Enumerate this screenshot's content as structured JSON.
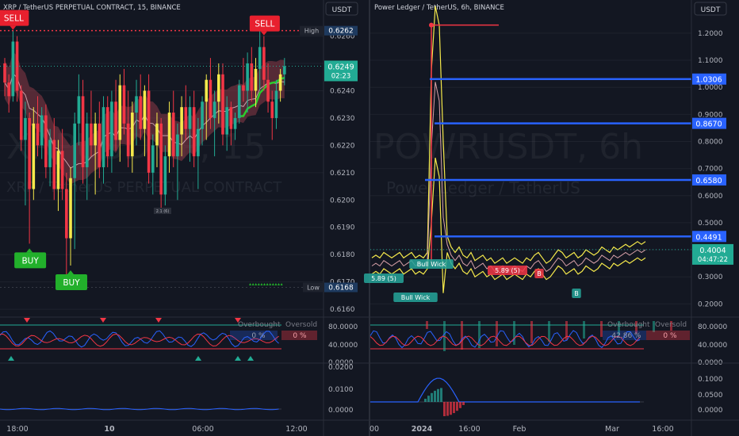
{
  "chart_data": [
    {
      "type": "candlestick",
      "title": "XRP / TetherUS PERPETUAL CONTRACT, 15, BINANCE",
      "watermark": "XRPUSDT.P, 15",
      "watermark_sub": "XRP / TetherUS PERPETUAL CONTRACT",
      "currency": "USDT",
      "price_ticks": [
        "0.6260",
        "0.6250",
        "0.6240",
        "0.6230",
        "0.6220",
        "0.6210",
        "0.6200",
        "0.6190",
        "0.6180",
        "0.6170",
        "0.6160"
      ],
      "time_ticks": [
        "18:00",
        "10",
        "06:00",
        "12:00"
      ],
      "high_label": "High",
      "high_value": "0.6262",
      "low_label": "Low",
      "low_value": "0.6168",
      "last_price": "0.6249",
      "countdown": "02:23",
      "signals": [
        {
          "label": "SELL",
          "kind": "sell",
          "bar": 2
        },
        {
          "label": "SELL",
          "kind": "sell",
          "bar": 63
        },
        {
          "label": "BUY",
          "kind": "buy",
          "bar": 6
        },
        {
          "label": "BUY",
          "kind": "buy",
          "bar": 16
        }
      ],
      "small_label": "2.1 (6)",
      "oscillator": {
        "overbought_label": "Overbought",
        "oversold_label": "Oversold",
        "overbought_value": "0 %",
        "oversold_value": "0 %",
        "ticks": [
          "80.0000",
          "40.0000",
          "0.0000"
        ]
      },
      "macd": {
        "ticks": [
          "0.0200",
          "0.0100",
          "0.0000"
        ]
      },
      "colors": {
        "up": "#22ab94",
        "down": "#f23645",
        "signal_up": "#f5e94b",
        "cloud": "#b05a66",
        "ema": "#2dcc2d"
      },
      "candles": [
        [
          0.625,
          0.6252,
          0.6238,
          0.6243
        ],
        [
          0.6243,
          0.6246,
          0.6232,
          0.6238
        ],
        [
          0.6238,
          0.6262,
          0.6236,
          0.6258
        ],
        [
          0.6258,
          0.626,
          0.6236,
          0.624
        ],
        [
          0.624,
          0.6242,
          0.6218,
          0.6222
        ],
        [
          0.6222,
          0.6236,
          0.6198,
          0.623
        ],
        [
          0.623,
          0.6232,
          0.6184,
          0.6204
        ],
        [
          0.6204,
          0.6234,
          0.62,
          0.6228
        ],
        [
          0.6228,
          0.6238,
          0.6216,
          0.622
        ],
        [
          0.622,
          0.6234,
          0.6215,
          0.6231
        ],
        [
          0.6231,
          0.6235,
          0.6208,
          0.6212
        ],
        [
          0.6212,
          0.6226,
          0.6205,
          0.6222
        ],
        [
          0.6222,
          0.623,
          0.62,
          0.6204
        ],
        [
          0.6204,
          0.6222,
          0.6196,
          0.6218
        ],
        [
          0.6218,
          0.6226,
          0.62,
          0.6204
        ],
        [
          0.6204,
          0.621,
          0.617,
          0.6186
        ],
        [
          0.6186,
          0.6212,
          0.6176,
          0.6208
        ],
        [
          0.6208,
          0.6232,
          0.6182,
          0.6228
        ],
        [
          0.6228,
          0.6246,
          0.622,
          0.6238
        ],
        [
          0.6238,
          0.6244,
          0.6206,
          0.6212
        ],
        [
          0.6212,
          0.6232,
          0.62,
          0.6228
        ],
        [
          0.6228,
          0.624,
          0.6216,
          0.622
        ],
        [
          0.622,
          0.6232,
          0.6202,
          0.6228
        ],
        [
          0.6228,
          0.6236,
          0.6208,
          0.6212
        ],
        [
          0.6212,
          0.6238,
          0.6206,
          0.6234
        ],
        [
          0.6234,
          0.6238,
          0.6212,
          0.6216
        ],
        [
          0.6216,
          0.624,
          0.621,
          0.6236
        ],
        [
          0.6236,
          0.6244,
          0.6218,
          0.6222
        ],
        [
          0.6222,
          0.6246,
          0.6214,
          0.6242
        ],
        [
          0.6242,
          0.6248,
          0.6224,
          0.6228
        ],
        [
          0.6228,
          0.624,
          0.6212,
          0.6216
        ],
        [
          0.6216,
          0.6236,
          0.621,
          0.6232
        ],
        [
          0.6232,
          0.6244,
          0.622,
          0.6238
        ],
        [
          0.6238,
          0.6246,
          0.6222,
          0.6226
        ],
        [
          0.6226,
          0.6242,
          0.6216,
          0.624
        ],
        [
          0.624,
          0.6246,
          0.6206,
          0.621
        ],
        [
          0.621,
          0.6224,
          0.6202,
          0.622
        ],
        [
          0.622,
          0.6232,
          0.6212,
          0.6228
        ],
        [
          0.6228,
          0.623,
          0.6196,
          0.6202
        ],
        [
          0.6202,
          0.622,
          0.6198,
          0.6216
        ],
        [
          0.6216,
          0.6236,
          0.621,
          0.6232
        ],
        [
          0.6232,
          0.624,
          0.6212,
          0.6216
        ],
        [
          0.6216,
          0.6228,
          0.62,
          0.6224
        ],
        [
          0.6224,
          0.6238,
          0.6216,
          0.6234
        ],
        [
          0.6234,
          0.6242,
          0.6222,
          0.6226
        ],
        [
          0.6226,
          0.6238,
          0.6214,
          0.6234
        ],
        [
          0.6234,
          0.624,
          0.6212,
          0.6216
        ],
        [
          0.6216,
          0.623,
          0.6204,
          0.6226
        ],
        [
          0.6226,
          0.6238,
          0.622,
          0.6236
        ],
        [
          0.6236,
          0.6246,
          0.6222,
          0.6244
        ],
        [
          0.6244,
          0.6252,
          0.6226,
          0.623
        ],
        [
          0.623,
          0.624,
          0.6216,
          0.6236
        ],
        [
          0.6236,
          0.625,
          0.6228,
          0.6246
        ],
        [
          0.6246,
          0.625,
          0.622,
          0.6224
        ],
        [
          0.6224,
          0.6238,
          0.6218,
          0.6234
        ],
        [
          0.6234,
          0.6236,
          0.622,
          0.6226
        ],
        [
          0.6226,
          0.6232,
          0.6222,
          0.623
        ],
        [
          0.623,
          0.6244,
          0.6228,
          0.6242
        ],
        [
          0.6242,
          0.6252,
          0.6236,
          0.624
        ],
        [
          0.624,
          0.6254,
          0.6232,
          0.625
        ],
        [
          0.625,
          0.6256,
          0.6236,
          0.624
        ],
        [
          0.624,
          0.6252,
          0.6234,
          0.6248
        ],
        [
          0.6248,
          0.6262,
          0.624,
          0.6256
        ],
        [
          0.6256,
          0.626,
          0.624,
          0.6244
        ],
        [
          0.6244,
          0.625,
          0.6232,
          0.6236
        ],
        [
          0.6236,
          0.624,
          0.6222,
          0.623
        ],
        [
          0.623,
          0.6244,
          0.6226,
          0.624
        ],
        [
          0.624,
          0.6248,
          0.6236,
          0.6246
        ],
        [
          0.6246,
          0.6252,
          0.6242,
          0.6249
        ]
      ]
    },
    {
      "type": "line",
      "title": "Power Ledger / TetherUS, 6h, BINANCE",
      "watermark": "POWRUSDT, 6h",
      "watermark_sub": "Power Ledger / TetherUS",
      "currency": "USDT",
      "price_ticks": [
        "1.2000",
        "1.1000",
        "1.0000",
        "0.9000",
        "0.8000",
        "0.7000",
        "0.6000",
        "0.5000",
        "0.4000",
        "0.3000",
        "0.2000"
      ],
      "time_ticks": [
        "00",
        "2024",
        "16:00",
        "Feb",
        "Mar",
        "16:00"
      ],
      "levels": [
        {
          "value": "1.0306"
        },
        {
          "value": "0.8670"
        },
        {
          "value": "0.6580"
        },
        {
          "value": "0.4491"
        }
      ],
      "last_price": "0.4004",
      "countdown": "04:47:22",
      "tags": [
        "5.89 (5)",
        "Bull Wick",
        "Bull Wick",
        "5.89 (5)",
        "B",
        "B"
      ],
      "oscillator": {
        "overbought_label": "Overbought",
        "oversold_label": "Oversold",
        "overbought_value": "42.86 %",
        "oversold_value": "0 %",
        "ticks": [
          "80.0000",
          "40.0000",
          "0.0000"
        ]
      },
      "macd": {
        "ticks": [
          "0.1000",
          "0.0500",
          "0.0000"
        ]
      },
      "x": [
        0,
        5,
        10,
        15,
        20,
        25,
        30,
        35,
        40,
        45,
        50,
        55,
        60,
        65,
        70,
        75,
        80,
        85,
        90,
        95,
        100,
        105,
        110,
        115,
        120,
        125,
        130,
        135,
        140,
        145,
        150,
        155,
        160,
        165,
        170,
        175,
        180,
        185,
        190,
        195,
        200,
        205,
        210,
        215,
        220,
        225,
        230,
        235,
        240,
        245,
        250,
        255,
        260,
        265,
        270,
        275,
        280,
        285,
        290,
        295,
        300,
        305,
        310,
        315,
        320,
        325,
        330,
        335,
        340,
        345
      ],
      "close": [
        0.34,
        0.35,
        0.34,
        0.36,
        0.35,
        0.34,
        0.35,
        0.36,
        0.34,
        0.35,
        0.36,
        0.34,
        0.35,
        0.34,
        0.36,
        0.78,
        1.02,
        0.95,
        0.52,
        0.42,
        0.38,
        0.36,
        0.38,
        0.35,
        0.34,
        0.36,
        0.33,
        0.34,
        0.35,
        0.33,
        0.34,
        0.32,
        0.33,
        0.34,
        0.32,
        0.33,
        0.34,
        0.33,
        0.32,
        0.34,
        0.33,
        0.35,
        0.36,
        0.34,
        0.32,
        0.33,
        0.35,
        0.37,
        0.36,
        0.34,
        0.35,
        0.36,
        0.34,
        0.35,
        0.37,
        0.36,
        0.35,
        0.36,
        0.38,
        0.37,
        0.36,
        0.38,
        0.37,
        0.38,
        0.39,
        0.38,
        0.39,
        0.4,
        0.39,
        0.4
      ]
    }
  ]
}
